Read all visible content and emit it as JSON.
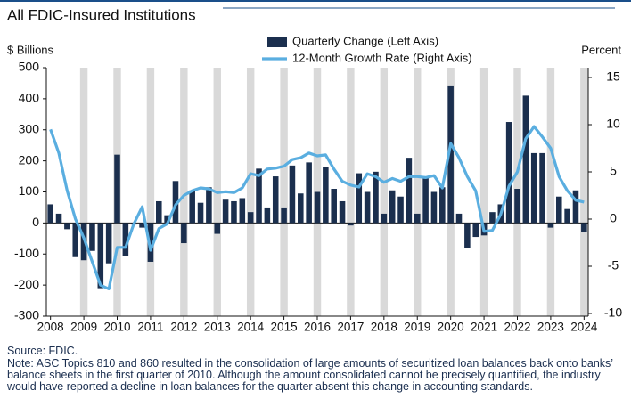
{
  "chart_data": {
    "type": "bar_line",
    "title": "All FDIC-Insured Institutions",
    "y_label": "$ Billions",
    "y2_label": "Percent",
    "categories": [
      "2008",
      null,
      null,
      null,
      "2009",
      null,
      null,
      null,
      "2010",
      null,
      null,
      null,
      "2011",
      null,
      null,
      null,
      "2012",
      null,
      null,
      null,
      "2013",
      null,
      null,
      null,
      "2014",
      null,
      null,
      null,
      "2015",
      null,
      null,
      null,
      "2016",
      null,
      null,
      null,
      "2017",
      null,
      null,
      null,
      "2018",
      null,
      null,
      null,
      "2019",
      null,
      null,
      null,
      "2020",
      null,
      null,
      null,
      "2021",
      null,
      null,
      null,
      "2022",
      null,
      null,
      null,
      "2023",
      null,
      null,
      null,
      "2024"
    ],
    "series": [
      {
        "name": "Quarterly Change (Left Axis)",
        "type": "bar",
        "color": "#1b2f4e",
        "values": [
          60,
          30,
          -20,
          -110,
          -120,
          -90,
          -210,
          -130,
          220,
          -105,
          -5,
          -15,
          -125,
          70,
          25,
          135,
          -65,
          105,
          65,
          115,
          -35,
          75,
          70,
          80,
          35,
          175,
          50,
          150,
          50,
          185,
          95,
          195,
          100,
          180,
          110,
          70,
          -8,
          160,
          100,
          165,
          30,
          105,
          85,
          210,
          30,
          145,
          100,
          115,
          440,
          30,
          -80,
          -45,
          -40,
          35,
          60,
          325,
          110,
          410,
          225,
          225,
          -15,
          85,
          45,
          105,
          -30
        ]
      },
      {
        "name": "12-Month Growth Rate (Right Axis)",
        "type": "line",
        "axis": "y2",
        "color": "#5aaee0",
        "values": [
          9.5,
          7,
          3,
          0,
          -2,
          -4.5,
          -7,
          -7.4,
          -3,
          -3,
          -0.5,
          1.3,
          -3.3,
          -1,
          -0.5,
          1.5,
          2.5,
          3,
          3.3,
          3.2,
          2.8,
          2.9,
          2.8,
          3.3,
          4.8,
          4.6,
          5.3,
          5.4,
          5.6,
          6.3,
          6.5,
          7,
          6.7,
          6.8,
          5.3,
          4,
          3.6,
          3.4,
          4.8,
          4.5,
          3.9,
          4.3,
          4,
          4.5,
          4.5,
          4.4,
          4.6,
          3.3,
          8,
          6.5,
          4.5,
          3,
          -1.3,
          -1.2,
          0.5,
          3.5,
          5,
          8.5,
          9.8,
          8.7,
          7.5,
          4.5,
          3,
          2,
          1.8
        ]
      }
    ],
    "ylim": [
      -300,
      500
    ],
    "yticks": [
      -300,
      -200,
      -100,
      0,
      100,
      200,
      300,
      400,
      500
    ],
    "y2lim": [
      -10,
      15
    ],
    "y2ticks": [
      -10,
      -5,
      0,
      5,
      10,
      15
    ],
    "source": "Source: FDIC.",
    "note": "Note: ASC Topics 810 and 860 resulted in the consolidation of large amounts of securitized loan balances back onto banks’ balance sheets in the first quarter of 2010. Although the amount consolidated cannot be precisely quantified, the industry would have reported a decline in loan balances for the quarter absent this change in accounting standards."
  }
}
